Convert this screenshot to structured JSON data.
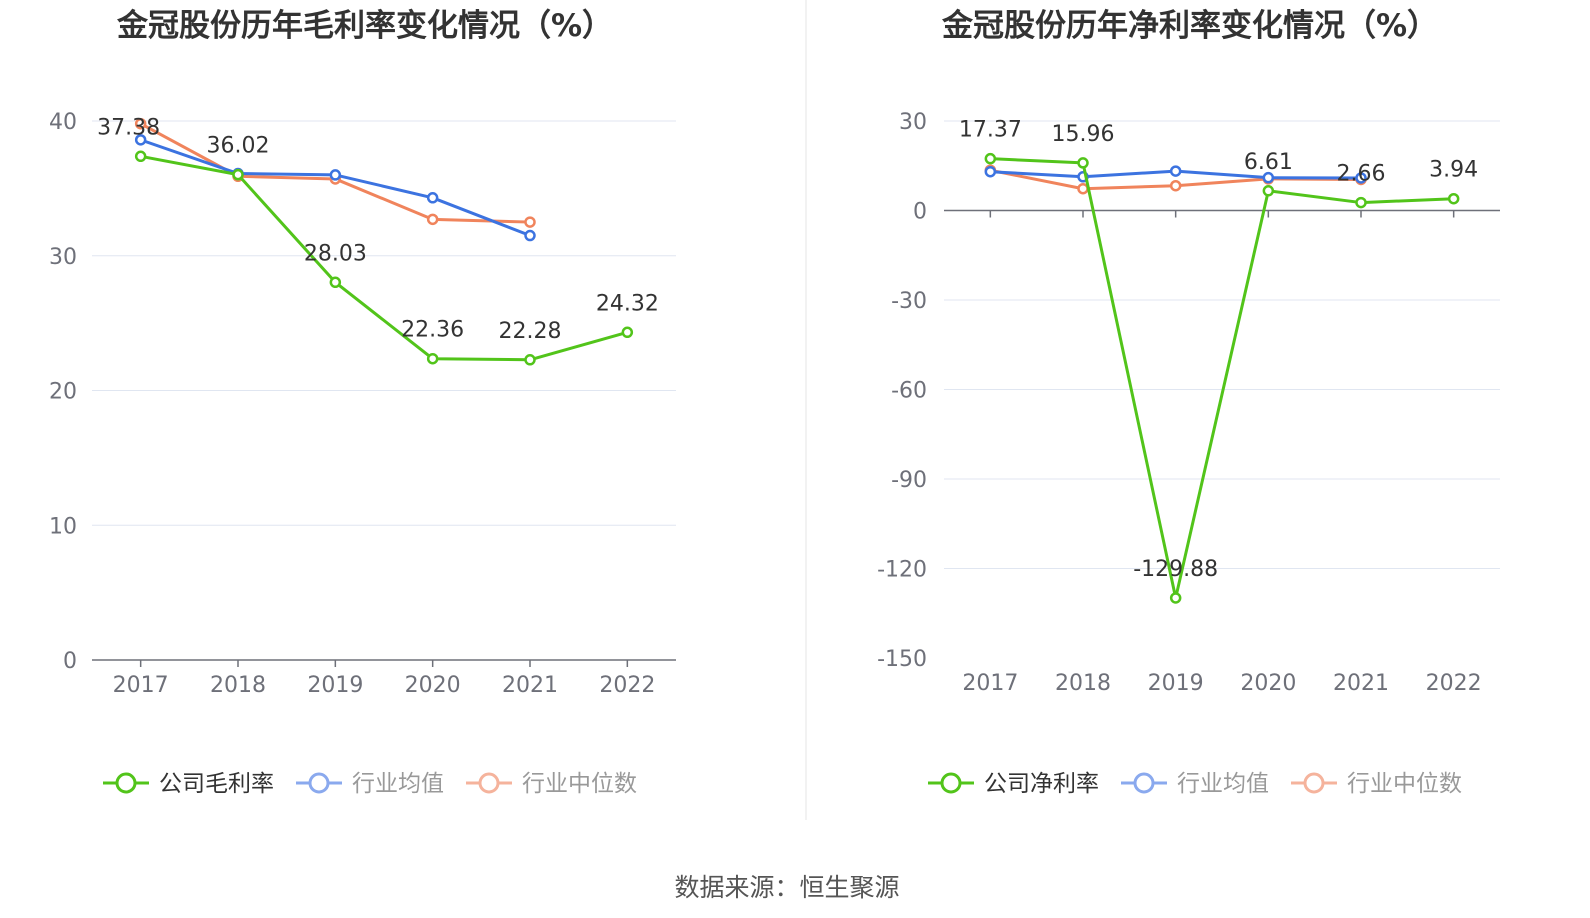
{
  "source_label": "数据来源：恒生聚源",
  "colors": {
    "company": "#52c41a",
    "avg": "#3c73e0",
    "median": "#f0845c",
    "avg_legend": "#8aa9ee",
    "median_legend": "#f5b39c"
  },
  "chart_data": [
    {
      "type": "line",
      "title": "金冠股份历年毛利率变化情况（%）",
      "categories": [
        "2017",
        "2018",
        "2019",
        "2020",
        "2021",
        "2022"
      ],
      "ylim": [
        0,
        40
      ],
      "yticks": [
        0,
        10,
        20,
        30,
        40
      ],
      "grid": true,
      "legend_position": "bottom-center",
      "series": [
        {
          "name": "公司毛利率",
          "key": "company",
          "values": [
            37.38,
            36.02,
            28.03,
            22.36,
            22.28,
            24.32
          ],
          "labels": [
            "37.38",
            "36.02",
            "28.03",
            "22.36",
            "22.28",
            "24.32"
          ]
        },
        {
          "name": "行业均值",
          "key": "avg",
          "values": [
            38.6,
            36.1,
            36.0,
            34.3,
            31.5,
            null
          ]
        },
        {
          "name": "行业中位数",
          "key": "median",
          "values": [
            39.8,
            35.9,
            35.7,
            32.7,
            32.5,
            null
          ]
        }
      ]
    },
    {
      "type": "line",
      "title": "金冠股份历年净利率变化情况（%）",
      "categories": [
        "2017",
        "2018",
        "2019",
        "2020",
        "2021",
        "2022"
      ],
      "ylim": [
        -150,
        30
      ],
      "yticks": [
        -150,
        -120,
        -90,
        -60,
        -30,
        0,
        30
      ],
      "grid": true,
      "legend_position": "bottom-center",
      "series": [
        {
          "name": "公司净利率",
          "key": "company",
          "values": [
            17.37,
            15.96,
            -129.88,
            6.61,
            2.66,
            3.94
          ],
          "labels": [
            "17.37",
            "15.96",
            "-129.88",
            "6.61",
            "2.66",
            "3.94"
          ]
        },
        {
          "name": "行业均值",
          "key": "avg",
          "values": [
            13.0,
            11.3,
            13.2,
            11.0,
            10.9,
            null
          ]
        },
        {
          "name": "行业中位数",
          "key": "median",
          "values": [
            13.5,
            7.3,
            8.3,
            10.6,
            10.4,
            null
          ]
        }
      ]
    }
  ]
}
